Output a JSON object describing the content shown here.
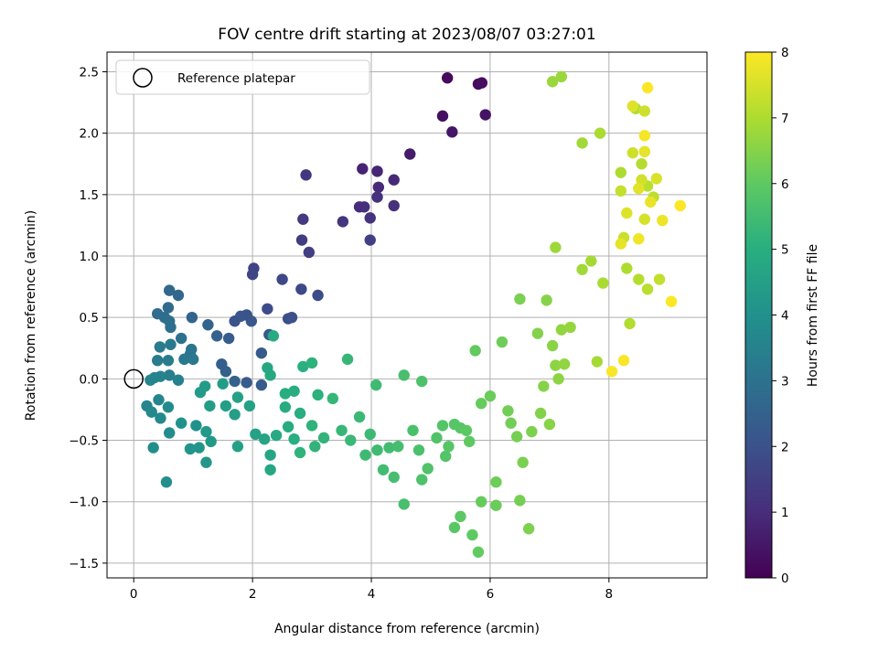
{
  "chart_data": {
    "type": "scatter",
    "title": "FOV centre drift starting at 2023/08/07 03:27:01",
    "xlabel": "Angular distance from reference (arcmin)",
    "ylabel": "Rotation from reference (arcmin)",
    "xlim": [
      -0.45,
      9.65
    ],
    "ylim": [
      -1.62,
      2.66
    ],
    "xticks": [
      0,
      2,
      4,
      6,
      8
    ],
    "xtick_labels": [
      "0",
      "2",
      "4",
      "6",
      "8"
    ],
    "yticks": [
      -1.5,
      -1.0,
      -0.5,
      0.0,
      0.5,
      1.0,
      1.5,
      2.0,
      2.5
    ],
    "ytick_labels": [
      "−1.5",
      "−1.0",
      "−0.5",
      "0.0",
      "0.5",
      "1.0",
      "1.5",
      "2.0",
      "2.5"
    ],
    "grid": true,
    "legend": {
      "placement": "top-left",
      "entries": [
        "Reference platepar"
      ]
    },
    "reference_point": {
      "x": 0.0,
      "y": 0.0
    },
    "colorbar": {
      "label": "Hours from first FF file",
      "range": [
        0,
        8
      ],
      "ticks": [
        0,
        1,
        2,
        3,
        4,
        5,
        6,
        7,
        8
      ],
      "tick_labels": [
        "0",
        "1",
        "2",
        "3",
        "4",
        "5",
        "6",
        "7",
        "8"
      ],
      "colormap": "viridis"
    },
    "series": [
      {
        "color_by": "hours",
        "points": [
          [
            5.28,
            2.45,
            0.2
          ],
          [
            5.8,
            2.4,
            0.25
          ],
          [
            5.86,
            2.41,
            0.3
          ],
          [
            5.2,
            2.14,
            0.35
          ],
          [
            5.92,
            2.15,
            0.4
          ],
          [
            5.36,
            2.01,
            0.45
          ],
          [
            4.65,
            1.83,
            0.6
          ],
          [
            3.85,
            1.71,
            0.8
          ],
          [
            4.1,
            1.69,
            0.85
          ],
          [
            4.38,
            1.62,
            0.9
          ],
          [
            4.12,
            1.56,
            0.95
          ],
          [
            3.8,
            1.4,
            1.0
          ],
          [
            3.88,
            1.4,
            1.05
          ],
          [
            4.1,
            1.48,
            1.1
          ],
          [
            4.38,
            1.41,
            1.1
          ],
          [
            3.98,
            1.31,
            1.15
          ],
          [
            3.52,
            1.28,
            1.2
          ],
          [
            2.9,
            1.66,
            1.3
          ],
          [
            2.85,
            1.3,
            1.35
          ],
          [
            2.83,
            1.13,
            1.4
          ],
          [
            2.95,
            1.03,
            1.45
          ],
          [
            3.98,
            1.13,
            1.5
          ],
          [
            2.02,
            0.9,
            1.6
          ],
          [
            2.0,
            0.85,
            1.65
          ],
          [
            2.5,
            0.81,
            1.7
          ],
          [
            2.82,
            0.73,
            1.75
          ],
          [
            3.1,
            0.68,
            1.8
          ],
          [
            2.25,
            0.57,
            1.85
          ],
          [
            2.6,
            0.49,
            1.9
          ],
          [
            2.66,
            0.5,
            1.95
          ],
          [
            1.9,
            0.52,
            2.0
          ],
          [
            1.7,
            0.47,
            2.05
          ],
          [
            1.8,
            0.51,
            2.1
          ],
          [
            1.98,
            0.47,
            2.15
          ],
          [
            2.28,
            0.36,
            2.2
          ],
          [
            2.15,
            0.21,
            2.25
          ],
          [
            2.15,
            -0.05,
            2.3
          ],
          [
            1.9,
            -0.03,
            2.3
          ],
          [
            1.6,
            0.33,
            2.35
          ],
          [
            1.48,
            0.12,
            2.4
          ],
          [
            1.55,
            0.06,
            2.45
          ],
          [
            1.7,
            -0.02,
            2.5
          ],
          [
            1.4,
            0.35,
            2.5
          ],
          [
            1.25,
            0.44,
            2.55
          ],
          [
            0.98,
            0.5,
            2.6
          ],
          [
            0.75,
            0.68,
            2.65
          ],
          [
            0.6,
            0.72,
            2.7
          ],
          [
            0.58,
            0.58,
            2.75
          ],
          [
            0.4,
            0.53,
            2.8
          ],
          [
            0.52,
            0.5,
            2.85
          ],
          [
            0.6,
            0.47,
            2.9
          ],
          [
            0.62,
            0.42,
            2.95
          ],
          [
            0.8,
            0.33,
            3.0
          ],
          [
            0.95,
            0.2,
            3.05
          ],
          [
            0.97,
            0.24,
            3.1
          ],
          [
            1.0,
            0.16,
            3.15
          ],
          [
            0.85,
            0.16,
            3.2
          ],
          [
            0.62,
            0.28,
            3.25
          ],
          [
            0.44,
            0.26,
            3.3
          ],
          [
            0.4,
            0.15,
            3.3
          ],
          [
            0.58,
            0.15,
            3.35
          ],
          [
            0.6,
            0.03,
            3.4
          ],
          [
            0.75,
            -0.01,
            3.45
          ],
          [
            0.45,
            0.02,
            3.5
          ],
          [
            0.35,
            0.01,
            3.55
          ],
          [
            0.28,
            -0.01,
            3.6
          ],
          [
            0.42,
            -0.17,
            3.6
          ],
          [
            0.22,
            -0.22,
            3.65
          ],
          [
            0.3,
            -0.27,
            3.7
          ],
          [
            0.45,
            -0.32,
            3.75
          ],
          [
            0.58,
            -0.23,
            3.8
          ],
          [
            0.6,
            -0.44,
            3.85
          ],
          [
            0.33,
            -0.56,
            3.9
          ],
          [
            0.55,
            -0.84,
            3.95
          ],
          [
            0.8,
            -0.36,
            4.0
          ],
          [
            1.05,
            -0.38,
            4.05
          ],
          [
            0.95,
            -0.57,
            4.1
          ],
          [
            1.1,
            -0.56,
            4.15
          ],
          [
            1.22,
            -0.68,
            4.2
          ],
          [
            1.3,
            -0.51,
            4.25
          ],
          [
            1.22,
            -0.43,
            4.3
          ],
          [
            1.12,
            -0.11,
            4.35
          ],
          [
            1.2,
            -0.06,
            4.35
          ],
          [
            1.28,
            -0.22,
            4.4
          ],
          [
            1.5,
            -0.04,
            4.4
          ],
          [
            1.55,
            -0.22,
            4.45
          ],
          [
            1.7,
            -0.29,
            4.45
          ],
          [
            1.75,
            -0.15,
            4.5
          ],
          [
            1.75,
            -0.55,
            4.5
          ],
          [
            1.95,
            -0.22,
            4.55
          ],
          [
            2.05,
            -0.45,
            4.6
          ],
          [
            2.2,
            -0.49,
            4.65
          ],
          [
            2.3,
            -0.62,
            4.7
          ],
          [
            2.3,
            -0.74,
            4.75
          ],
          [
            2.25,
            0.09,
            4.75
          ],
          [
            2.3,
            0.03,
            4.8
          ],
          [
            2.35,
            0.35,
            4.85
          ],
          [
            2.4,
            -0.46,
            4.85
          ],
          [
            2.55,
            -0.23,
            4.9
          ],
          [
            2.6,
            -0.39,
            4.9
          ],
          [
            2.55,
            -0.12,
            4.95
          ],
          [
            2.7,
            -0.1,
            4.95
          ],
          [
            2.8,
            -0.28,
            5.0
          ],
          [
            2.7,
            -0.49,
            5.0
          ],
          [
            2.85,
            0.1,
            5.05
          ],
          [
            3.0,
            0.13,
            5.1
          ],
          [
            3.1,
            -0.13,
            5.1
          ],
          [
            3.0,
            -0.38,
            5.15
          ],
          [
            2.8,
            -0.6,
            5.15
          ],
          [
            3.05,
            -0.55,
            5.2
          ],
          [
            3.2,
            -0.48,
            5.2
          ],
          [
            3.35,
            -0.16,
            5.25
          ],
          [
            3.5,
            -0.42,
            5.3
          ],
          [
            3.6,
            0.16,
            5.3
          ],
          [
            3.65,
            -0.5,
            5.35
          ],
          [
            3.8,
            -0.31,
            5.35
          ],
          [
            3.9,
            -0.62,
            5.4
          ],
          [
            3.98,
            -0.45,
            5.4
          ],
          [
            4.08,
            -0.05,
            5.45
          ],
          [
            4.1,
            -0.58,
            5.45
          ],
          [
            4.2,
            -0.74,
            5.5
          ],
          [
            4.3,
            -0.56,
            5.5
          ],
          [
            4.38,
            -0.8,
            5.55
          ],
          [
            4.45,
            -0.55,
            5.55
          ],
          [
            4.55,
            -1.02,
            5.6
          ],
          [
            4.55,
            0.03,
            5.6
          ],
          [
            4.7,
            -0.42,
            5.65
          ],
          [
            4.8,
            -0.58,
            5.65
          ],
          [
            4.85,
            -0.82,
            5.7
          ],
          [
            4.85,
            -0.02,
            5.7
          ],
          [
            4.95,
            -0.73,
            5.75
          ],
          [
            5.1,
            -0.48,
            5.75
          ],
          [
            5.2,
            -0.38,
            5.8
          ],
          [
            5.25,
            -0.63,
            5.8
          ],
          [
            5.3,
            -0.55,
            5.85
          ],
          [
            5.4,
            -0.37,
            5.85
          ],
          [
            5.4,
            -1.21,
            5.9
          ],
          [
            5.5,
            -0.4,
            5.9
          ],
          [
            5.5,
            -1.12,
            5.95
          ],
          [
            5.6,
            -0.42,
            5.95
          ],
          [
            5.65,
            -0.51,
            6.0
          ],
          [
            5.7,
            -1.27,
            6.0
          ],
          [
            5.75,
            0.23,
            6.05
          ],
          [
            5.8,
            -1.41,
            6.05
          ],
          [
            5.85,
            -1.0,
            6.1
          ],
          [
            5.85,
            -0.2,
            6.1
          ],
          [
            6.0,
            -0.14,
            6.15
          ],
          [
            6.1,
            -1.03,
            6.15
          ],
          [
            6.1,
            -0.84,
            6.2
          ],
          [
            6.2,
            0.3,
            6.2
          ],
          [
            6.3,
            -0.26,
            6.25
          ],
          [
            6.35,
            -0.36,
            6.25
          ],
          [
            6.45,
            -0.47,
            6.3
          ],
          [
            6.5,
            -0.99,
            6.3
          ],
          [
            6.5,
            0.65,
            6.35
          ],
          [
            6.55,
            -0.68,
            6.35
          ],
          [
            6.65,
            -1.22,
            6.4
          ],
          [
            6.7,
            -0.43,
            6.4
          ],
          [
            6.8,
            0.37,
            6.45
          ],
          [
            6.85,
            -0.28,
            6.45
          ],
          [
            6.9,
            -0.06,
            6.5
          ],
          [
            6.95,
            0.64,
            6.5
          ],
          [
            7.0,
            -0.37,
            6.55
          ],
          [
            7.05,
            0.27,
            6.55
          ],
          [
            7.1,
            0.11,
            6.6
          ],
          [
            7.15,
            0.0,
            6.6
          ],
          [
            7.2,
            0.4,
            6.65
          ],
          [
            7.25,
            0.12,
            6.65
          ],
          [
            7.35,
            0.42,
            6.7
          ],
          [
            7.05,
            2.42,
            6.75
          ],
          [
            7.2,
            2.46,
            6.75
          ],
          [
            7.1,
            1.07,
            6.8
          ],
          [
            7.55,
            1.92,
            6.85
          ],
          [
            7.55,
            0.89,
            6.85
          ],
          [
            7.7,
            0.96,
            6.9
          ],
          [
            7.8,
            0.14,
            6.9
          ],
          [
            7.85,
            2.0,
            6.95
          ],
          [
            7.9,
            0.78,
            6.95
          ],
          [
            8.2,
            1.68,
            7.0
          ],
          [
            8.3,
            0.9,
            7.0
          ],
          [
            8.35,
            0.45,
            7.05
          ],
          [
            8.45,
            2.2,
            7.05
          ],
          [
            8.5,
            0.81,
            7.1
          ],
          [
            8.55,
            1.75,
            7.1
          ],
          [
            8.65,
            1.57,
            7.15
          ],
          [
            8.65,
            0.73,
            7.15
          ],
          [
            8.75,
            1.48,
            7.2
          ],
          [
            8.85,
            0.81,
            7.25
          ],
          [
            8.2,
            1.53,
            7.3
          ],
          [
            8.25,
            1.15,
            7.35
          ],
          [
            8.4,
            1.84,
            7.4
          ],
          [
            8.55,
            1.62,
            7.45
          ],
          [
            8.6,
            1.3,
            7.5
          ],
          [
            8.8,
            1.63,
            7.55
          ],
          [
            8.3,
            1.35,
            7.6
          ],
          [
            8.5,
            1.55,
            7.65
          ],
          [
            8.6,
            1.85,
            7.7
          ],
          [
            8.7,
            1.44,
            7.75
          ],
          [
            8.9,
            1.29,
            7.8
          ],
          [
            8.5,
            1.14,
            7.85
          ],
          [
            8.6,
            1.98,
            7.9
          ],
          [
            8.05,
            0.06,
            7.95
          ],
          [
            8.25,
            0.15,
            7.95
          ],
          [
            9.05,
            0.63,
            7.98
          ],
          [
            9.2,
            1.41,
            8.0
          ],
          [
            8.65,
            2.37,
            7.98
          ],
          [
            8.4,
            2.22,
            7.6
          ],
          [
            8.6,
            2.18,
            7.4
          ],
          [
            8.2,
            1.1,
            7.7
          ]
        ]
      }
    ]
  }
}
